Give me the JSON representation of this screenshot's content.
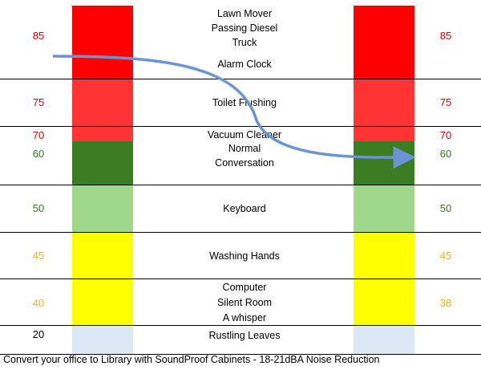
{
  "colors": {
    "red_dark": "#ff0000",
    "red": "#ff3333",
    "green_dark": "#3b7d23",
    "green_light": "#9fd88a",
    "yellow": "#ffff00",
    "blue_light": "#dbe8f6",
    "arrow": "#6b94d4"
  },
  "levels": {
    "left": [
      "85",
      "75",
      "70",
      "60",
      "50",
      "45",
      "40",
      "20"
    ],
    "right": [
      "85",
      "75",
      "70",
      "60",
      "50",
      "45",
      "38"
    ],
    "label_colors": {
      "red": "#e00000",
      "green": "#2e7d1e",
      "yellow": "#f0b400",
      "black": "#000000"
    }
  },
  "sources": {
    "lawn_mover": "Lawn Mover",
    "passing_diesel": "Passing Diesel",
    "truck": "Truck",
    "alarm_clock": "Alarm Clock",
    "toilet_flushing": "Toilet Flushing",
    "vacuum_cleaner": "Vacuum Cleaner",
    "normal": "Normal",
    "conversation": "Conversation",
    "keyboard": "Keyboard",
    "washing_hands": "Washing Hands",
    "computer": "Computer",
    "silent_room": "Silent Room",
    "a_whisper": "A whisper",
    "rustling_leaves": "Rustling Leaves"
  },
  "footer": "Convert your office to Library with SoundProof Cabinets - 18-21dBA Noise Reduction"
}
